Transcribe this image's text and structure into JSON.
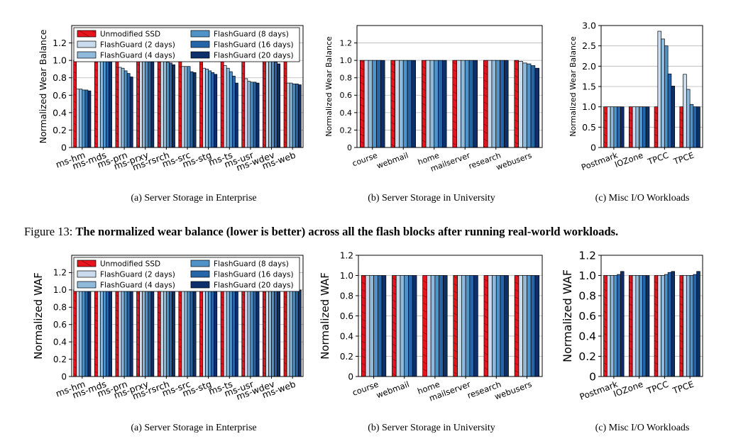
{
  "colors": {
    "unmodified": "#e8141c",
    "fg2": "#c9dbec",
    "fg4": "#8fbadc",
    "fg8": "#4f93c9",
    "fg16": "#2765a9",
    "fg20": "#0d2f6b"
  },
  "legend": [
    "Unmodified SSD",
    "FlashGuard (2 days)",
    "FlashGuard (4 days)",
    "FlashGuard (8 days)",
    "FlashGuard (16 days)",
    "FlashGuard (20 days)"
  ],
  "figure13_caption": {
    "prefix": "Figure 13: ",
    "text": "The normalized wear balance (lower is better) across all the flash blocks after running real-world workloads."
  },
  "chart_data": [
    {
      "type": "bar",
      "ylabel": "Normalized Wear Balance",
      "caption": "(a)  Server Storage in Enterprise",
      "ylim": [
        0,
        1.4
      ],
      "yticks": [
        "0",
        "0.2",
        "0.4",
        "0.6",
        "0.8",
        "1.0",
        "1.2"
      ],
      "grid": true,
      "legend_placement": "top",
      "categories": [
        "ms-hm",
        "ms-mds",
        "ms-prn",
        "ms-prxy",
        "ms-rsrch",
        "ms-src",
        "ms-stg",
        "ms-ts",
        "ms-usr",
        "ms-wdev",
        "ms-web"
      ],
      "series": [
        {
          "name": "Unmodified SSD",
          "values": [
            1,
            1,
            1,
            1,
            1,
            1,
            1,
            1,
            1,
            1,
            1
          ]
        },
        {
          "name": "FlashGuard (2 days)",
          "values": [
            0.67,
            1,
            0.92,
            1,
            0.99,
            0.93,
            0.91,
            0.94,
            0.79,
            1,
            0.74
          ]
        },
        {
          "name": "FlashGuard (4 days)",
          "values": [
            0.67,
            1,
            0.91,
            1,
            0.99,
            0.93,
            0.9,
            0.91,
            0.76,
            1,
            0.74
          ]
        },
        {
          "name": "FlashGuard (8 days)",
          "values": [
            0.66,
            1,
            0.88,
            1,
            0.98,
            0.93,
            0.88,
            0.87,
            0.75,
            1,
            0.73
          ]
        },
        {
          "name": "FlashGuard (16 days)",
          "values": [
            0.66,
            1,
            0.85,
            1,
            0.97,
            0.87,
            0.86,
            0.82,
            0.75,
            0.98,
            0.73
          ]
        },
        {
          "name": "FlashGuard (20 days)",
          "values": [
            0.65,
            1,
            0.81,
            1,
            0.95,
            0.86,
            0.84,
            0.74,
            0.74,
            0.96,
            0.72
          ]
        }
      ]
    },
    {
      "type": "bar",
      "ylabel": "Normalized Wear Balance",
      "caption": "(b)  Server Storage in University",
      "ylim": [
        0,
        1.4
      ],
      "yticks": [
        "0",
        "0.2",
        "0.4",
        "0.6",
        "0.8",
        "1.0",
        "1.2"
      ],
      "grid": true,
      "categories": [
        "course",
        "webmail",
        "home",
        "mailserver",
        "research",
        "webusers"
      ],
      "series": [
        {
          "name": "Unmodified SSD",
          "values": [
            1,
            1,
            1,
            1,
            1,
            1
          ]
        },
        {
          "name": "FlashGuard (2 days)",
          "values": [
            1,
            1,
            1,
            1,
            1,
            0.99
          ]
        },
        {
          "name": "FlashGuard (4 days)",
          "values": [
            1,
            1,
            1,
            1,
            1,
            0.97
          ]
        },
        {
          "name": "FlashGuard (8 days)",
          "values": [
            1,
            1,
            1,
            1,
            1,
            0.96
          ]
        },
        {
          "name": "FlashGuard (16 days)",
          "values": [
            1,
            1,
            1,
            1,
            1,
            0.94
          ]
        },
        {
          "name": "FlashGuard (20 days)",
          "values": [
            1,
            1,
            1,
            1,
            1,
            0.91
          ]
        }
      ]
    },
    {
      "type": "bar",
      "ylabel": "Normalized Wear Balance",
      "caption": "(c)  Misc I/O Workloads",
      "ylim": [
        0,
        3.0
      ],
      "yticks": [
        "0",
        "0.5",
        "1.0",
        "1.5",
        "2.0",
        "2.5",
        "3.0"
      ],
      "grid": true,
      "categories": [
        "Postmark",
        "IOZone",
        "TPCC",
        "TPCE"
      ],
      "series": [
        {
          "name": "Unmodified SSD",
          "values": [
            1,
            1,
            1,
            1
          ]
        },
        {
          "name": "FlashGuard (2 days)",
          "values": [
            1,
            1,
            2.86,
            1.8
          ]
        },
        {
          "name": "FlashGuard (4 days)",
          "values": [
            1,
            1,
            2.67,
            1.43
          ]
        },
        {
          "name": "FlashGuard (8 days)",
          "values": [
            1,
            1,
            2.5,
            1.06
          ]
        },
        {
          "name": "FlashGuard (16 days)",
          "values": [
            1,
            1,
            1.81,
            1.0
          ]
        },
        {
          "name": "FlashGuard (20 days)",
          "values": [
            1,
            1,
            1.51,
            1.0
          ]
        }
      ]
    },
    {
      "type": "bar",
      "ylabel": "Normalized WAF",
      "caption": "(a)  Server Storage in Enterprise",
      "ylim": [
        0,
        1.4
      ],
      "yticks": [
        "0",
        "0.2",
        "0.4",
        "0.6",
        "0.8",
        "1.0",
        "1.2"
      ],
      "grid": true,
      "legend_placement": "top",
      "categories": [
        "ms-hm",
        "ms-mds",
        "ms-prn",
        "ms-prxy",
        "ms-rsrch",
        "ms-src",
        "ms-stg",
        "ms-ts",
        "ms-usr",
        "ms-wdev",
        "ms-web"
      ],
      "series": [
        {
          "name": "Unmodified SSD",
          "values": [
            1,
            1,
            1,
            1,
            1,
            1,
            1,
            1,
            1,
            1,
            1
          ]
        },
        {
          "name": "FlashGuard (2 days)",
          "values": [
            1,
            1,
            1,
            1,
            1,
            1,
            1,
            1,
            1,
            1,
            1
          ]
        },
        {
          "name": "FlashGuard (4 days)",
          "values": [
            1,
            1,
            1,
            1,
            1,
            1,
            1,
            1,
            1,
            1,
            1
          ]
        },
        {
          "name": "FlashGuard (8 days)",
          "values": [
            1,
            1,
            1,
            1,
            1,
            1,
            1,
            1,
            1,
            1,
            1
          ]
        },
        {
          "name": "FlashGuard (16 days)",
          "values": [
            1,
            1,
            1,
            1,
            1,
            1,
            1,
            1,
            1,
            1,
            1
          ]
        },
        {
          "name": "FlashGuard (20 days)",
          "values": [
            1,
            1,
            1,
            1,
            1,
            1,
            1,
            1,
            1,
            1,
            1
          ]
        }
      ]
    },
    {
      "type": "bar",
      "ylabel": "Normalized WAF",
      "caption": "(b)  Server Storage in University",
      "ylim": [
        0,
        1.2
      ],
      "yticks": [
        "0",
        "0.2",
        "0.4",
        "0.6",
        "0.8",
        "1.0",
        "1.2"
      ],
      "grid": true,
      "categories": [
        "course",
        "webmail",
        "home",
        "mailserver",
        "research",
        "webusers"
      ],
      "series": [
        {
          "name": "Unmodified SSD",
          "values": [
            1,
            1,
            1,
            1,
            1,
            1
          ]
        },
        {
          "name": "FlashGuard (2 days)",
          "values": [
            1,
            1,
            1,
            1,
            1,
            1
          ]
        },
        {
          "name": "FlashGuard (4 days)",
          "values": [
            1,
            1,
            1,
            1,
            1,
            1
          ]
        },
        {
          "name": "FlashGuard (8 days)",
          "values": [
            1,
            1,
            1,
            1,
            1,
            1
          ]
        },
        {
          "name": "FlashGuard (16 days)",
          "values": [
            1,
            1,
            1,
            1,
            1,
            1
          ]
        },
        {
          "name": "FlashGuard (20 days)",
          "values": [
            1,
            1,
            1,
            1,
            1,
            1
          ]
        }
      ]
    },
    {
      "type": "bar",
      "ylabel": "Normalized WAF",
      "caption": "(c)  Misc I/O Workloads",
      "ylim": [
        0,
        1.2
      ],
      "yticks": [
        "0",
        "0.2",
        "0.4",
        "0.6",
        "0.8",
        "1.0",
        "1.2"
      ],
      "grid": true,
      "categories": [
        "Postmark",
        "IOZone",
        "TPCC",
        "TPCE"
      ],
      "series": [
        {
          "name": "Unmodified SSD",
          "values": [
            1,
            1,
            1,
            1
          ]
        },
        {
          "name": "FlashGuard (2 days)",
          "values": [
            1,
            1,
            1,
            1
          ]
        },
        {
          "name": "FlashGuard (4 days)",
          "values": [
            1,
            1,
            1,
            1
          ]
        },
        {
          "name": "FlashGuard (8 days)",
          "values": [
            1.0,
            1.0,
            1.01,
            1.0
          ]
        },
        {
          "name": "FlashGuard (16 days)",
          "values": [
            1.01,
            1.0,
            1.03,
            1.01
          ]
        },
        {
          "name": "FlashGuard (20 days)",
          "values": [
            1.04,
            1.0,
            1.04,
            1.04
          ]
        }
      ]
    }
  ]
}
